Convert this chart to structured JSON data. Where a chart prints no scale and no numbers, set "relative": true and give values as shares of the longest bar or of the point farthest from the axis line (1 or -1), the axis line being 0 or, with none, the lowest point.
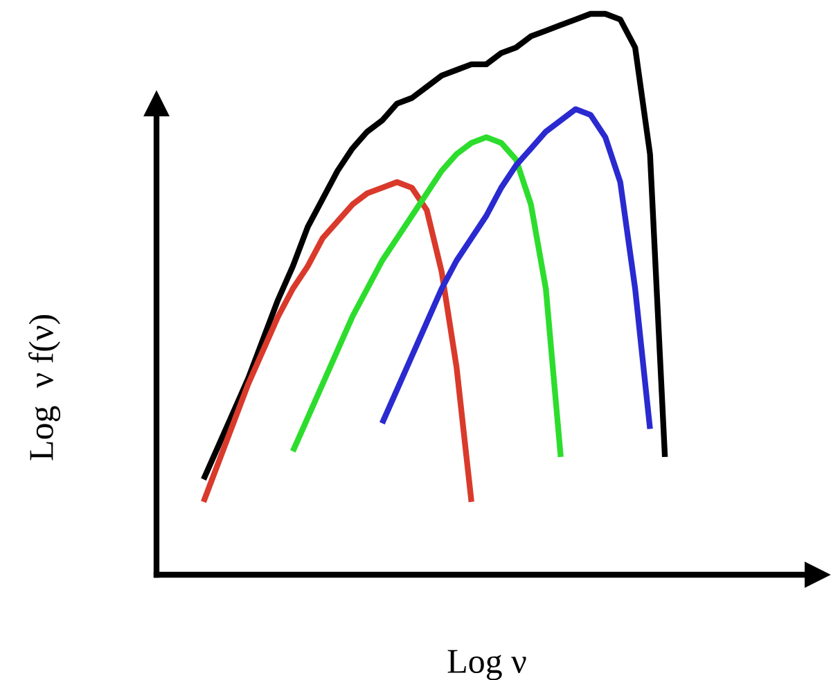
{
  "chart_data": {
    "type": "line",
    "relative": true,
    "xlabel": "Log ν",
    "ylabel": "Log  ν f(ν)",
    "marker": "none",
    "line_style": "solid",
    "categories": [
      null,
      null,
      null,
      null,
      null,
      null,
      null,
      null,
      null,
      null,
      null,
      null,
      null,
      null,
      null,
      null,
      null,
      null,
      null,
      null,
      null,
      null,
      null,
      null,
      null,
      null,
      null,
      null,
      null,
      null,
      null,
      null
    ],
    "series": [
      {
        "color": "#000000",
        "values": [
          0.17,
          0.23,
          0.29,
          0.35,
          0.42,
          0.49,
          0.55,
          0.62,
          0.67,
          0.72,
          0.76,
          0.79,
          0.81,
          0.84,
          0.85,
          0.87,
          0.89,
          0.9,
          0.91,
          0.91,
          0.93,
          0.94,
          0.96,
          0.97,
          0.98,
          0.99,
          1.0,
          1.0,
          0.99,
          0.94,
          0.75,
          0.21
        ]
      },
      {
        "color": "#d93a2b",
        "values": [
          0.13,
          0.2,
          0.27,
          0.34,
          0.4,
          0.46,
          0.51,
          0.55,
          0.6,
          0.63,
          0.66,
          0.68,
          0.69,
          0.7,
          0.69,
          0.65,
          0.54,
          0.37,
          0.13,
          null,
          null,
          null,
          null,
          null,
          null,
          null,
          null,
          null,
          null,
          null,
          null,
          null
        ]
      },
      {
        "color": "#2ddd2d",
        "values": [
          null,
          null,
          null,
          null,
          null,
          null,
          0.22,
          0.28,
          0.34,
          0.4,
          0.46,
          0.51,
          0.56,
          0.6,
          0.64,
          0.68,
          0.72,
          0.75,
          0.77,
          0.78,
          0.77,
          0.74,
          0.66,
          0.51,
          0.21,
          null,
          null,
          null,
          null,
          null,
          null,
          null
        ]
      },
      {
        "color": "#2a2ad0",
        "values": [
          null,
          null,
          null,
          null,
          null,
          null,
          null,
          null,
          null,
          null,
          null,
          null,
          0.27,
          0.33,
          0.39,
          0.45,
          0.51,
          0.56,
          0.6,
          0.64,
          0.69,
          0.73,
          0.76,
          0.79,
          0.81,
          0.83,
          0.82,
          0.78,
          0.7,
          0.51,
          0.26,
          null
        ]
      }
    ]
  }
}
